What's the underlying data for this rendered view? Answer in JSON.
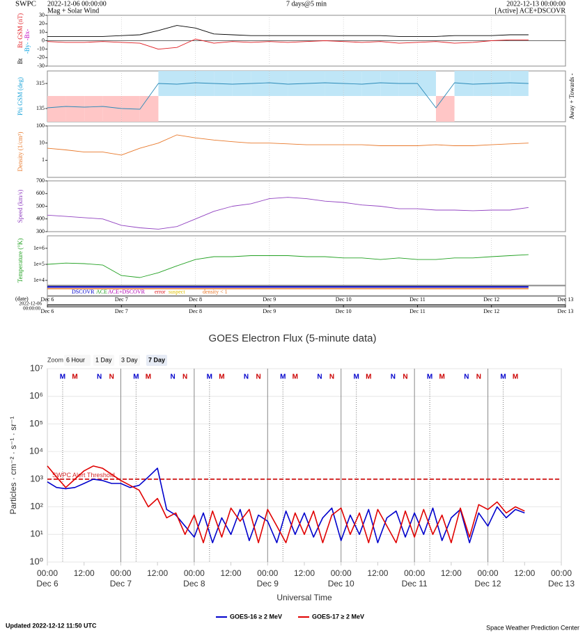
{
  "chart_data": [
    {
      "type": "multi-panel",
      "header": {
        "site": "SWPC",
        "start": "2022-12-06 00:00:00",
        "subtitle": "Mag + Solar Wind",
        "title": "7 days@5 min",
        "end": "2022-12-13 00:00:00",
        "source": "[Active] ACE+DSCOVR"
      },
      "xlim": [
        "Dec 6 00:00",
        "Dec 13 00:00"
      ],
      "xlabel": "(date)",
      "xstart": [
        "2022-12-06",
        "00:00:00"
      ],
      "xticks": [
        {
          "value": "Dec 6 00:00",
          "label": "Dec 6"
        },
        {
          "value": "Dec 7 00:00",
          "label": "Dec 7"
        },
        {
          "value": "Dec 8 00:00",
          "label": "Dec 8"
        },
        {
          "value": "Dec 9 00:00",
          "label": "Dec 9"
        },
        {
          "value": "Dec 10 00:00",
          "label": "Dec 10"
        },
        {
          "value": "Dec 11 00:00",
          "label": "Dec 11"
        },
        {
          "value": "Dec 12 00:00",
          "label": "Dec 12"
        },
        {
          "value": "Dec 13 00:00",
          "label": "Dec 13"
        }
      ],
      "x": [
        "Dec 6 00:00",
        "Dec 6 06:00",
        "Dec 6 12:00",
        "Dec 6 18:00",
        "Dec 7 00:00",
        "Dec 7 06:00",
        "Dec 7 12:00",
        "Dec 7 18:00",
        "Dec 8 00:00",
        "Dec 8 06:00",
        "Dec 8 12:00",
        "Dec 8 18:00",
        "Dec 9 00:00",
        "Dec 9 06:00",
        "Dec 9 12:00",
        "Dec 9 18:00",
        "Dec 10 00:00",
        "Dec 10 06:00",
        "Dec 10 12:00",
        "Dec 10 18:00",
        "Dec 11 00:00",
        "Dec 11 06:00",
        "Dec 11 12:00",
        "Dec 11 18:00",
        "Dec 12 00:00",
        "Dec 12 06:00",
        "Dec 12 12:00"
      ],
      "panels": [
        {
          "labels": [
            {
              "text": "Bz GSM (nT)",
              "color": "#e0191f"
            },
            {
              "text": "-Bx-",
              "color": "#c000c0"
            },
            {
              "text": "-By-",
              "color": "#00a0e0"
            },
            {
              "text": "Bt",
              "color": "#000000"
            }
          ],
          "ylim": [
            -30,
            30
          ],
          "yticks": [
            -30,
            -20,
            -10,
            0,
            10,
            20,
            30
          ],
          "series": [
            {
              "color": "#000000",
              "values": [
                5,
                5,
                5,
                5,
                6,
                7,
                12,
                18,
                15,
                8,
                7,
                6,
                6,
                6,
                6,
                6,
                6,
                6,
                6,
                5,
                5,
                5,
                6,
                6,
                6,
                7,
                7
              ]
            },
            {
              "color": "#e0191f",
              "values": [
                -1,
                -2,
                -2,
                -1,
                -2,
                -3,
                -10,
                -8,
                2,
                -3,
                -1,
                -2,
                -1,
                -2,
                -1,
                0,
                -1,
                -2,
                -1,
                -3,
                -2,
                -1,
                -3,
                -2,
                0,
                1,
                1
              ]
            }
          ]
        },
        {
          "labels": [
            {
              "text": "Phi GSM (deg)",
              "color": "#1aa3d9"
            }
          ],
          "right_label": "Away + Towards -",
          "ylim": [
            40,
            405
          ],
          "yticks": [
            135,
            315
          ],
          "sector_colors": [
            "#ffc6c6",
            "#bfe6f7"
          ],
          "series": [
            {
              "color": "#2a8ab8",
              "values": [
                140,
                150,
                145,
                150,
                135,
                130,
                315,
                310,
                320,
                315,
                310,
                315,
                320,
                310,
                315,
                320,
                315,
                310,
                320,
                315,
                315,
                140,
                320,
                310,
                315,
                320,
                315
              ]
            }
          ]
        },
        {
          "labels": [
            {
              "text": "Density (1/cm³)",
              "color": "#e8782a"
            }
          ],
          "scale": "log",
          "ylim": [
            0.1,
            100
          ],
          "yticks": [
            1,
            10,
            100
          ],
          "series": [
            {
              "color": "#e8782a",
              "values": [
                5,
                4,
                3,
                3,
                2,
                5,
                10,
                30,
                20,
                15,
                12,
                10,
                10,
                9,
                8,
                8,
                8,
                8,
                7,
                7,
                7,
                8,
                7,
                7,
                8,
                9,
                10
              ]
            }
          ]
        },
        {
          "labels": [
            {
              "text": "Speed (km/s)",
              "color": "#9040c0"
            }
          ],
          "ylim": [
            300,
            700
          ],
          "yticks": [
            300,
            400,
            500,
            600,
            700
          ],
          "series": [
            {
              "color": "#9040c0",
              "values": [
                430,
                420,
                410,
                400,
                350,
                330,
                320,
                340,
                400,
                460,
                500,
                520,
                560,
                570,
                560,
                540,
                530,
                510,
                500,
                480,
                480,
                470,
                470,
                465,
                470,
                470,
                490
              ]
            }
          ]
        },
        {
          "labels": [
            {
              "text": "Temperature (°K)",
              "color": "#20a020"
            }
          ],
          "scale": "log",
          "ylim": [
            5000,
            6000000
          ],
          "yticks": [
            {
              "value": 10000,
              "label": "1e+4"
            },
            {
              "value": 100000,
              "label": "1e+5"
            },
            {
              "value": 1000000,
              "label": "1e+6"
            }
          ],
          "series": [
            {
              "color": "#20a020",
              "values": [
                100000,
                120000,
                110000,
                90000,
                20000,
                15000,
                30000,
                80000,
                200000,
                300000,
                300000,
                350000,
                350000,
                350000,
                300000,
                300000,
                250000,
                250000,
                200000,
                250000,
                200000,
                200000,
                250000,
                250000,
                300000,
                350000,
                400000
              ]
            }
          ]
        }
      ],
      "source_legend": [
        {
          "label": "DSCOVR",
          "color": "#0000cc"
        },
        {
          "label": "ACE",
          "color": "#20a020"
        },
        {
          "label": "ACE+DSCOVR",
          "color": "#b000b0"
        },
        {
          "label": "error",
          "color": "#e0191f"
        },
        {
          "label": "suspect",
          "color": "#e0c000"
        },
        {
          "label": "density < 1",
          "color": "#e8782a"
        }
      ]
    },
    {
      "type": "line",
      "title": "GOES Electron Flux (5-minute data)",
      "zoom": {
        "label": "Zoom",
        "options": [
          "6 Hour",
          "1 Day",
          "3 Day",
          "7 Day"
        ],
        "selected": 3
      },
      "ylabel": "Particles · cm⁻² · s⁻¹ · sr⁻¹",
      "xlabel": "Universal Time",
      "scale": "log",
      "grid": true,
      "ylim": [
        1,
        10000000
      ],
      "yticks": [
        {
          "value": 1,
          "label": "10⁰"
        },
        {
          "value": 10,
          "label": "10¹"
        },
        {
          "value": 100,
          "label": "10²"
        },
        {
          "value": 1000,
          "label": "10³"
        },
        {
          "value": 10000,
          "label": "10⁴"
        },
        {
          "value": 100000,
          "label": "10⁵"
        },
        {
          "value": 1000000,
          "label": "10⁶"
        },
        {
          "value": 10000000,
          "label": "10⁷"
        }
      ],
      "xlim": [
        "Dec 6 00:00",
        "Dec 13 00:00"
      ],
      "xticks": [
        {
          "value": "Dec 6 00:00",
          "label": "00:00"
        },
        {
          "value": "Dec 6 12:00",
          "label": "12:00"
        },
        {
          "value": "Dec 7 00:00",
          "label": "00:00"
        },
        {
          "value": "Dec 7 12:00",
          "label": "12:00"
        },
        {
          "value": "Dec 8 00:00",
          "label": "00:00"
        },
        {
          "value": "Dec 8 12:00",
          "label": "12:00"
        },
        {
          "value": "Dec 9 00:00",
          "label": "00:00"
        },
        {
          "value": "Dec 9 12:00",
          "label": "12:00"
        },
        {
          "value": "Dec 10 00:00",
          "label": "00:00"
        },
        {
          "value": "Dec 10 12:00",
          "label": "12:00"
        },
        {
          "value": "Dec 11 00:00",
          "label": "00:00"
        },
        {
          "value": "Dec 11 12:00",
          "label": "12:00"
        },
        {
          "value": "Dec 12 00:00",
          "label": "00:00"
        },
        {
          "value": "Dec 12 12:00",
          "label": "12:00"
        },
        {
          "value": "Dec 13 00:00",
          "label": "00:00"
        }
      ],
      "xdates": [
        {
          "value": "Dec 6 00:00",
          "label": "Dec 6"
        },
        {
          "value": "Dec 7 00:00",
          "label": "Dec 7"
        },
        {
          "value": "Dec 8 00:00",
          "label": "Dec 8"
        },
        {
          "value": "Dec 9 00:00",
          "label": "Dec 9"
        },
        {
          "value": "Dec 10 00:00",
          "label": "Dec 10"
        },
        {
          "value": "Dec 11 00:00",
          "label": "Dec 11"
        },
        {
          "value": "Dec 12 00:00",
          "label": "Dec 12"
        },
        {
          "value": "Dec 13 00:00",
          "label": "Dec 13"
        }
      ],
      "threshold": {
        "label": "SWPC Alert Threshold",
        "value": 1000,
        "color": "#d42a2a"
      },
      "markers": [
        {
          "label": "M",
          "color": "#0000cc",
          "x": [
            "Dec 6 05:00",
            "Dec 7 05:00",
            "Dec 8 05:00",
            "Dec 9 05:00",
            "Dec 10 05:00",
            "Dec 11 05:00",
            "Dec 12 05:00"
          ]
        },
        {
          "label": "M",
          "color": "#cc0000",
          "x": [
            "Dec 6 09:00",
            "Dec 7 09:00",
            "Dec 8 09:00",
            "Dec 9 09:00",
            "Dec 10 09:00",
            "Dec 11 09:00",
            "Dec 12 09:00"
          ]
        },
        {
          "label": "N",
          "color": "#0000cc",
          "x": [
            "Dec 6 17:00",
            "Dec 7 17:00",
            "Dec 8 17:00",
            "Dec 9 17:00",
            "Dec 10 17:00",
            "Dec 11 17:00"
          ]
        },
        {
          "label": "N",
          "color": "#cc0000",
          "x": [
            "Dec 6 21:00",
            "Dec 7 21:00",
            "Dec 8 21:00",
            "Dec 9 21:00",
            "Dec 10 21:00",
            "Dec 11 21:00"
          ]
        }
      ],
      "x": [
        "Dec 6 00:00",
        "Dec 6 03:00",
        "Dec 6 06:00",
        "Dec 6 09:00",
        "Dec 6 12:00",
        "Dec 6 15:00",
        "Dec 6 18:00",
        "Dec 6 21:00",
        "Dec 7 00:00",
        "Dec 7 03:00",
        "Dec 7 06:00",
        "Dec 7 09:00",
        "Dec 7 12:00",
        "Dec 7 15:00",
        "Dec 7 18:00",
        "Dec 7 21:00",
        "Dec 8 00:00",
        "Dec 8 03:00",
        "Dec 8 06:00",
        "Dec 8 09:00",
        "Dec 8 12:00",
        "Dec 8 15:00",
        "Dec 8 18:00",
        "Dec 8 21:00",
        "Dec 9 00:00",
        "Dec 9 03:00",
        "Dec 9 06:00",
        "Dec 9 09:00",
        "Dec 9 12:00",
        "Dec 9 15:00",
        "Dec 9 18:00",
        "Dec 9 21:00",
        "Dec 10 00:00",
        "Dec 10 03:00",
        "Dec 10 06:00",
        "Dec 10 09:00",
        "Dec 10 12:00",
        "Dec 10 15:00",
        "Dec 10 18:00",
        "Dec 10 21:00",
        "Dec 11 00:00",
        "Dec 11 03:00",
        "Dec 11 06:00",
        "Dec 11 09:00",
        "Dec 11 12:00",
        "Dec 11 15:00",
        "Dec 11 18:00",
        "Dec 11 21:00",
        "Dec 12 00:00",
        "Dec 12 03:00",
        "Dec 12 06:00",
        "Dec 12 09:00",
        "Dec 12 12:00"
      ],
      "series": [
        {
          "name": "GOES-16 ≥ 2 MeV",
          "color": "#0000cc",
          "values": [
            800,
            500,
            450,
            500,
            700,
            1000,
            900,
            700,
            700,
            500,
            600,
            1200,
            2500,
            80,
            50,
            20,
            8,
            60,
            5,
            40,
            10,
            80,
            6,
            50,
            30,
            5,
            70,
            10,
            60,
            8,
            40,
            90,
            6,
            50,
            10,
            80,
            5,
            40,
            70,
            8,
            60,
            10,
            90,
            6,
            40,
            80,
            5,
            60,
            20,
            100,
            40,
            80,
            60
          ]
        },
        {
          "name": "GOES-17 ≥ 2 MeV",
          "color": "#e00000",
          "values": [
            3000,
            1200,
            500,
            1000,
            2000,
            3000,
            2500,
            1500,
            900,
            600,
            400,
            100,
            200,
            40,
            60,
            10,
            50,
            5,
            70,
            8,
            90,
            30,
            80,
            5,
            80,
            20,
            5,
            60,
            10,
            70,
            5,
            50,
            90,
            10,
            60,
            5,
            80,
            20,
            5,
            70,
            8,
            80,
            10,
            50,
            5,
            90,
            8,
            120,
            80,
            150,
            60,
            100,
            70
          ]
        }
      ]
    }
  ],
  "footer": {
    "updated": "Updated 2022-12-12 11:50 UTC",
    "credit": "Space Weather Prediction Center"
  }
}
